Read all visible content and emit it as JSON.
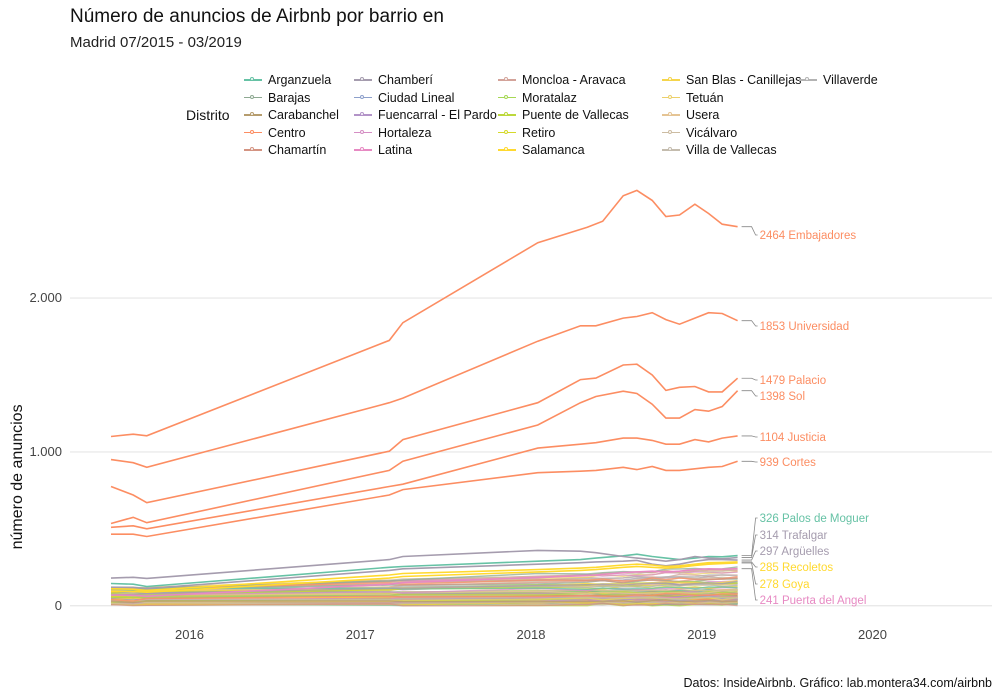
{
  "title": "Número de anuncios de Airbnb por barrio en",
  "subtitle": "Madrid 07/2015 - 03/2019",
  "caption": "Datos: InsideAirbnb. Gráfico: lab.montera34.com/airbnb",
  "legend_title": "Distrito",
  "legend": [
    {
      "name": "Arganzuela",
      "color": "#66c2a5"
    },
    {
      "name": "Barajas",
      "color": "#8ea992"
    },
    {
      "name": "Carabanchel",
      "color": "#b69d6e"
    },
    {
      "name": "Centro",
      "color": "#fc8d62"
    },
    {
      "name": "Chamartín",
      "color": "#d49482"
    },
    {
      "name": "Chamberí",
      "color": "#a59cae"
    },
    {
      "name": "Ciudad Lineal",
      "color": "#8da0cb"
    },
    {
      "name": "Fuencarral - El Pardo",
      "color": "#b394c8"
    },
    {
      "name": "Hortaleza",
      "color": "#d58ec4"
    },
    {
      "name": "Latina",
      "color": "#e78ac3"
    },
    {
      "name": "Moncloa - Aravaca",
      "color": "#d3a39a"
    },
    {
      "name": "Moratalaz",
      "color": "#a6d854"
    },
    {
      "name": "Puente de Vallecas",
      "color": "#bcd83c"
    },
    {
      "name": "Retiro",
      "color": "#d5d92a"
    },
    {
      "name": "Salamanca",
      "color": "#ffd92f"
    },
    {
      "name": "San Blas - Canillejas",
      "color": "#f5d54c"
    },
    {
      "name": "Tetuán",
      "color": "#ecd06a"
    },
    {
      "name": "Usera",
      "color": "#e5c494"
    },
    {
      "name": "Vicálvaro",
      "color": "#ccbca2"
    },
    {
      "name": "Villa de Vallecas",
      "color": "#c4bcae"
    },
    {
      "name": "Villaverde",
      "color": "#b3b3b3"
    }
  ],
  "chart_data": {
    "type": "line",
    "title": "Número de anuncios de Airbnb por barrio en",
    "subtitle": "Madrid 07/2015 - 03/2019",
    "xlabel": "",
    "ylabel": "número de anuncios",
    "xlim": [
      2015.3,
      2020.7
    ],
    "ylim": [
      -60,
      2800
    ],
    "x_ticks": [
      2016,
      2017,
      2018,
      2019,
      2020
    ],
    "y_ticks": [
      0,
      1000,
      2000
    ],
    "y_tick_labels": [
      "0",
      "1.000",
      "2.000"
    ],
    "grid": "horizontal",
    "legend_position": "top",
    "series": [
      {
        "name": "Embajadores",
        "color": "#fc8d62",
        "end_label": "2464 Embajadores",
        "x": [
          2015.54,
          2015.67,
          2015.75,
          2017.17,
          2017.25,
          2018.04,
          2018.33,
          2018.42,
          2018.54,
          2018.62,
          2018.71,
          2018.79,
          2018.87,
          2018.96,
          2019.04,
          2019.12,
          2019.21
        ],
        "y": [
          1100,
          1115,
          1105,
          1725,
          1840,
          2360,
          2460,
          2500,
          2665,
          2700,
          2635,
          2530,
          2540,
          2610,
          2550,
          2480,
          2464
        ]
      },
      {
        "name": "Universidad",
        "color": "#fc8d62",
        "end_label": "1853 Universidad",
        "x": [
          2015.54,
          2015.67,
          2015.75,
          2017.17,
          2017.25,
          2018.04,
          2018.29,
          2018.38,
          2018.54,
          2018.62,
          2018.71,
          2018.79,
          2018.87,
          2018.96,
          2019.04,
          2019.12,
          2019.21
        ],
        "y": [
          950,
          930,
          900,
          1320,
          1350,
          1720,
          1820,
          1820,
          1870,
          1880,
          1905,
          1860,
          1830,
          1870,
          1905,
          1900,
          1853
        ]
      },
      {
        "name": "Palacio",
        "color": "#fc8d62",
        "end_label": "1479 Palacio",
        "x": [
          2015.54,
          2015.67,
          2015.75,
          2017.17,
          2017.25,
          2018.04,
          2018.29,
          2018.38,
          2018.54,
          2018.62,
          2018.71,
          2018.79,
          2018.87,
          2018.96,
          2019.04,
          2019.12,
          2019.21
        ],
        "y": [
          775,
          720,
          670,
          1005,
          1080,
          1320,
          1470,
          1480,
          1565,
          1570,
          1500,
          1400,
          1420,
          1425,
          1390,
          1390,
          1479
        ]
      },
      {
        "name": "Sol",
        "color": "#fc8d62",
        "end_label": "1398 Sol",
        "x": [
          2015.54,
          2015.67,
          2015.75,
          2017.17,
          2017.25,
          2018.04,
          2018.29,
          2018.38,
          2018.54,
          2018.62,
          2018.71,
          2018.79,
          2018.87,
          2018.96,
          2019.04,
          2019.12,
          2019.21
        ],
        "y": [
          535,
          575,
          540,
          880,
          940,
          1175,
          1320,
          1360,
          1395,
          1380,
          1310,
          1220,
          1220,
          1275,
          1265,
          1295,
          1398
        ]
      },
      {
        "name": "Justicia",
        "color": "#fc8d62",
        "end_label": "1104 Justicia",
        "x": [
          2015.54,
          2015.67,
          2015.75,
          2017.17,
          2017.25,
          2018.04,
          2018.29,
          2018.38,
          2018.54,
          2018.62,
          2018.71,
          2018.79,
          2018.87,
          2018.96,
          2019.04,
          2019.12,
          2019.21
        ],
        "y": [
          510,
          520,
          500,
          775,
          790,
          1025,
          1050,
          1060,
          1090,
          1090,
          1075,
          1050,
          1050,
          1080,
          1065,
          1090,
          1104
        ]
      },
      {
        "name": "Cortes",
        "color": "#fc8d62",
        "end_label": "939 Cortes",
        "x": [
          2015.54,
          2015.67,
          2015.75,
          2017.17,
          2017.25,
          2018.04,
          2018.29,
          2018.38,
          2018.54,
          2018.62,
          2018.71,
          2018.79,
          2018.87,
          2018.96,
          2019.04,
          2019.12,
          2019.21
        ],
        "y": [
          465,
          465,
          450,
          720,
          755,
          865,
          875,
          880,
          900,
          885,
          905,
          880,
          880,
          890,
          900,
          905,
          939
        ]
      },
      {
        "name": "Palos de Moguer",
        "color": "#66c2a5",
        "end_label": "326 Palos de Moguer",
        "x": [
          2015.54,
          2015.67,
          2015.75,
          2017.17,
          2017.25,
          2018.04,
          2018.29,
          2018.38,
          2018.54,
          2018.62,
          2018.71,
          2018.79,
          2018.87,
          2018.96,
          2019.04,
          2019.12,
          2019.21
        ],
        "y": [
          145,
          140,
          125,
          250,
          255,
          290,
          300,
          310,
          325,
          335,
          320,
          310,
          300,
          310,
          320,
          318,
          326
        ]
      },
      {
        "name": "Trafalgar",
        "color": "#a59cae",
        "end_label": "314 Trafalgar",
        "x": [
          2015.54,
          2015.67,
          2015.75,
          2017.17,
          2017.25,
          2018.04,
          2018.29,
          2018.38,
          2018.54,
          2018.62,
          2018.71,
          2018.79,
          2018.87,
          2018.96,
          2019.04,
          2019.12,
          2019.21
        ],
        "y": [
          180,
          185,
          178,
          300,
          320,
          360,
          355,
          345,
          320,
          310,
          300,
          290,
          300,
          320,
          310,
          305,
          314
        ]
      },
      {
        "name": "Argüelles",
        "color": "#a59cae",
        "end_label": "297 Argüelles",
        "x": [
          2015.54,
          2015.67,
          2015.75,
          2017.17,
          2017.25,
          2018.04,
          2018.29,
          2018.38,
          2018.54,
          2018.62,
          2018.71,
          2018.79,
          2018.87,
          2018.96,
          2019.04,
          2019.12,
          2019.21
        ],
        "y": [
          120,
          118,
          112,
          230,
          240,
          270,
          280,
          285,
          290,
          295,
          270,
          260,
          270,
          290,
          300,
          300,
          297
        ]
      },
      {
        "name": "Recoletos",
        "color": "#ffd92f",
        "end_label": "285 Recoletos",
        "x": [
          2015.54,
          2015.67,
          2015.75,
          2017.17,
          2017.25,
          2018.04,
          2018.29,
          2018.38,
          2018.54,
          2018.62,
          2018.71,
          2018.79,
          2018.87,
          2018.96,
          2019.04,
          2019.12,
          2019.21
        ],
        "y": [
          110,
          108,
          100,
          200,
          210,
          235,
          245,
          250,
          265,
          270,
          265,
          255,
          260,
          270,
          280,
          282,
          285
        ]
      },
      {
        "name": "Goya",
        "color": "#ffd92f",
        "end_label": "278 Goya",
        "x": [
          2015.54,
          2015.67,
          2015.75,
          2017.17,
          2017.25,
          2018.04,
          2018.29,
          2018.38,
          2018.54,
          2018.62,
          2018.71,
          2018.79,
          2018.87,
          2018.96,
          2019.04,
          2019.12,
          2019.21
        ],
        "y": [
          95,
          92,
          88,
          180,
          190,
          220,
          230,
          235,
          250,
          255,
          250,
          245,
          250,
          262,
          270,
          274,
          278
        ]
      },
      {
        "name": "Puerta del Angel",
        "color": "#e78ac3",
        "end_label": "241 Puerta del Angel",
        "x": [
          2015.54,
          2015.67,
          2015.75,
          2017.17,
          2017.25,
          2018.04,
          2018.29,
          2018.38,
          2018.54,
          2018.62,
          2018.71,
          2018.79,
          2018.87,
          2018.96,
          2019.04,
          2019.12,
          2019.21
        ],
        "y": [
          70,
          68,
          62,
          140,
          150,
          185,
          195,
          200,
          215,
          220,
          225,
          220,
          225,
          235,
          240,
          238,
          241
        ]
      }
    ]
  }
}
